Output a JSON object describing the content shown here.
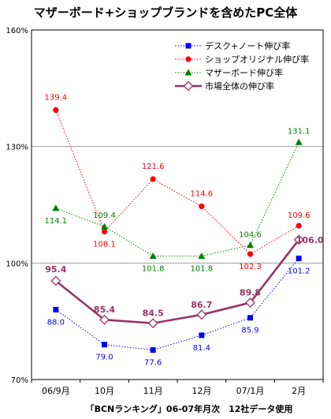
{
  "chart_data": {
    "type": "line",
    "title": "マザーボード+ショップブランドを含めたPC全体",
    "source_note": "「BCNランキング」06-07年月次　12社データ使用",
    "categories": [
      "06/9月",
      "10月",
      "11月",
      "12月",
      "07/1月",
      "2月"
    ],
    "ylim": [
      70,
      160
    ],
    "yticks": [
      "70%",
      "100%",
      "130%",
      "160%"
    ],
    "ytick_values": [
      70,
      100,
      130,
      160
    ],
    "grid": true,
    "legend_position": "top-right",
    "series": [
      {
        "name": "デスク+ノート伸び率",
        "values": [
          88.0,
          79.0,
          77.6,
          81.4,
          85.9,
          101.2
        ],
        "labels": [
          "88.0",
          "79.0",
          "77.6",
          "81.4",
          "85.9",
          "101.2"
        ],
        "color": "#0000ff",
        "line_style": "dotted",
        "marker": "square"
      },
      {
        "name": "ショップオリジナル伸び率",
        "values": [
          139.4,
          108.1,
          121.6,
          114.6,
          102.3,
          109.6
        ],
        "labels": [
          "139.4",
          "108.1",
          "121.6",
          "114.6",
          "102.3",
          "109.6"
        ],
        "color": "#ff0000",
        "line_style": "dotted",
        "marker": "circle"
      },
      {
        "name": "マザーボード伸び率",
        "values": [
          114.1,
          109.4,
          101.8,
          101.8,
          104.6,
          131.1
        ],
        "labels": [
          "114.1",
          "109.4",
          "101.8",
          "101.8",
          "104.6",
          "131.1"
        ],
        "color": "#008000",
        "line_style": "dotted",
        "marker": "triangle"
      },
      {
        "name": "市場全体の伸び率",
        "values": [
          95.4,
          85.4,
          84.5,
          86.7,
          89.8,
          106.0
        ],
        "labels": [
          "95.4",
          "85.4",
          "84.5",
          "86.7",
          "89.8",
          "106.0"
        ],
        "color": "#993366",
        "line_style": "solid",
        "marker": "diamond"
      }
    ]
  }
}
